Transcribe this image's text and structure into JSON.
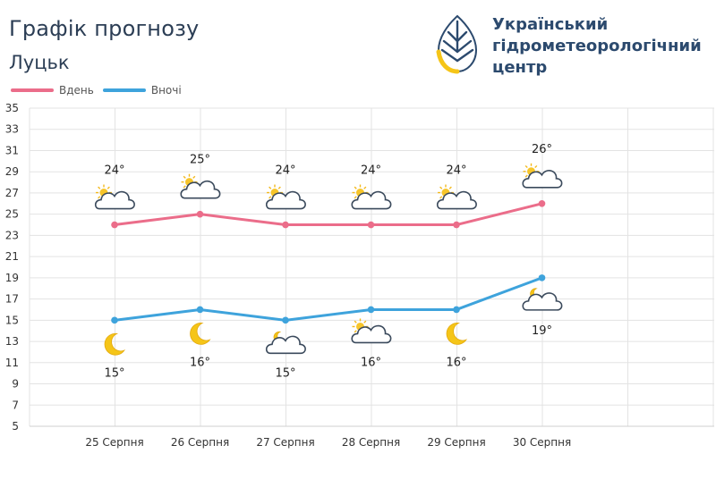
{
  "header": {
    "title": "Графік прогнозу",
    "city": "Луцьк"
  },
  "logo": {
    "line1": "Український",
    "line2": "гідрометеорологічний",
    "line3": "центр"
  },
  "colors": {
    "day": "#eb6d8a",
    "night": "#3ea3dc",
    "grid": "#e3e3e3",
    "text": "#333333",
    "logo_blue": "#2c4a6e",
    "logo_yellow": "#f5c518"
  },
  "chart_data": {
    "type": "line",
    "categories": [
      "25 Серпня",
      "26 Серпня",
      "27 Серпня",
      "28 Серпня",
      "29 Серпня",
      "30 Серпня"
    ],
    "ylim": [
      5,
      35
    ],
    "yticks": [
      5,
      7,
      9,
      11,
      13,
      15,
      17,
      19,
      21,
      23,
      25,
      27,
      29,
      31,
      33,
      35
    ],
    "grid": true,
    "legend_position": "top-left",
    "series": [
      {
        "name": "Вдень",
        "values": [
          24,
          25,
          24,
          24,
          24,
          26
        ],
        "labels": [
          "24°",
          "25°",
          "24°",
          "24°",
          "24°",
          "26°"
        ],
        "icons": [
          "partly-cloudy-day-icon",
          "partly-cloudy-day-icon",
          "partly-cloudy-day-icon",
          "partly-cloudy-day-icon",
          "partly-cloudy-day-icon",
          "partly-cloudy-day-icon"
        ]
      },
      {
        "name": "Вночі",
        "values": [
          15,
          16,
          15,
          16,
          16,
          19
        ],
        "labels": [
          "15°",
          "16°",
          "15°",
          "16°",
          "16°",
          "19°"
        ],
        "icons": [
          "moon-icon",
          "moon-icon",
          "partly-cloudy-night-icon",
          "partly-cloudy-day-icon",
          "moon-icon",
          "partly-cloudy-night-icon"
        ]
      }
    ]
  }
}
